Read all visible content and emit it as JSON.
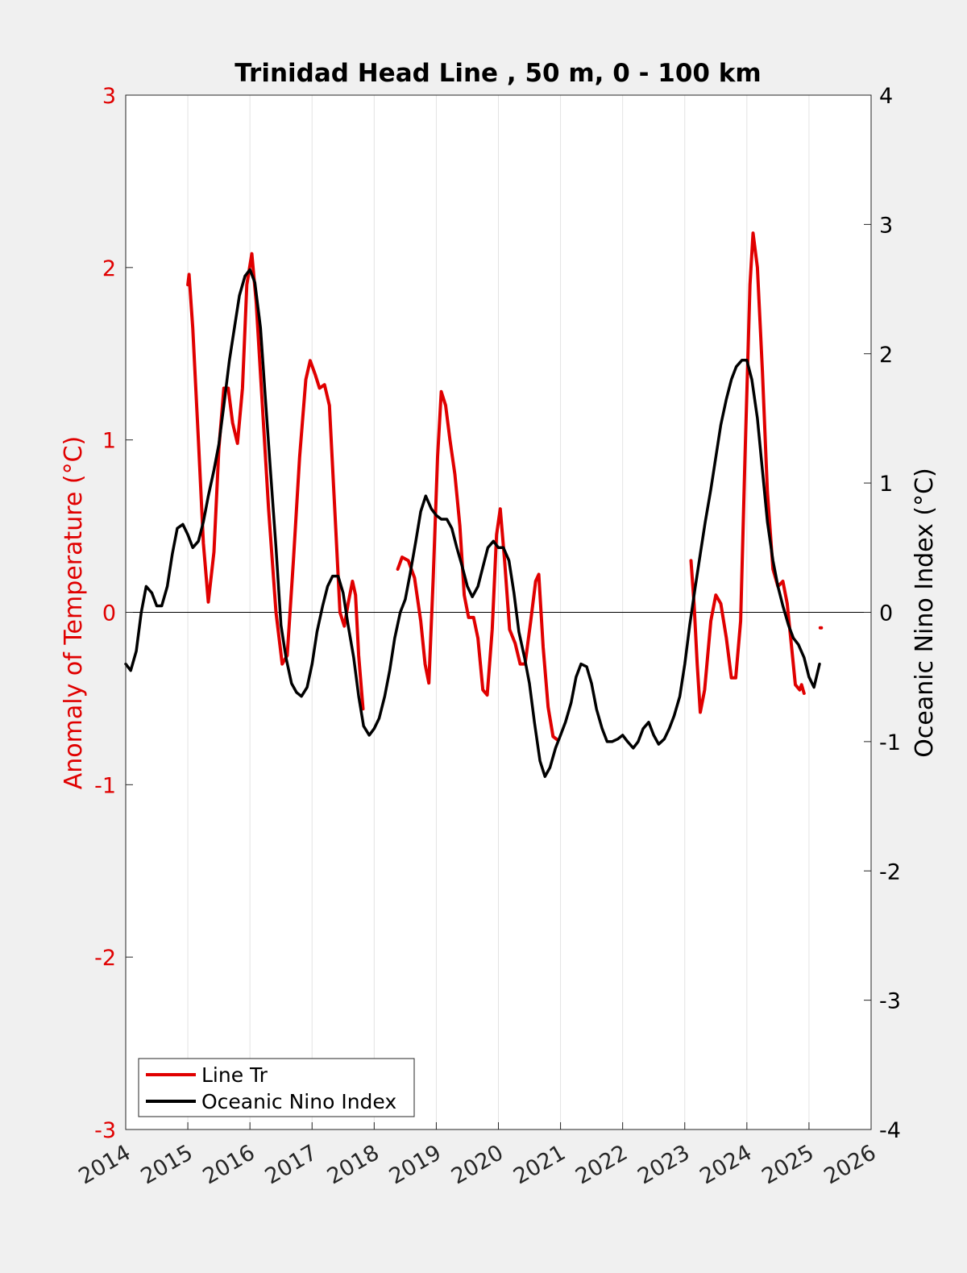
{
  "chart_data": {
    "type": "line",
    "title": "Trinidad Head Line , 50 m, 0 - 100 km",
    "xlabel": "",
    "ylabel_left": "Anomaly of Temperature (°C)",
    "ylabel_right": "Oceanic Nino Index (°C)",
    "xlim": [
      2014,
      2026
    ],
    "ylim_left": [
      -3,
      3
    ],
    "ylim_right": [
      -4,
      4
    ],
    "x_ticks": [
      "2014",
      "2015",
      "2016",
      "2017",
      "2018",
      "2019",
      "2020",
      "2021",
      "2022",
      "2023",
      "2024",
      "2025",
      "2026"
    ],
    "y_left_ticks": [
      "-3",
      "-2",
      "-1",
      "0",
      "1",
      "2",
      "3"
    ],
    "y_right_ticks": [
      "-4",
      "-3",
      "-2",
      "-1",
      "0",
      "1",
      "2",
      "3",
      "4"
    ],
    "grid": "vertical",
    "zero_line": true,
    "legend_position": "bottom-left",
    "colors": {
      "left_axis": "#e00000",
      "right_axis": "#000000",
      "plot_bg": "#ffffff",
      "figure_bg": "#f0f0f0",
      "grid": "#e3e3e3"
    },
    "series": [
      {
        "name": "Line Tr",
        "axis": "left",
        "color": "#e00000",
        "segments": [
          [
            [
              2015.0,
              1.9
            ],
            [
              2015.02,
              1.96
            ],
            [
              2015.08,
              1.65
            ],
            [
              2015.17,
              1.0
            ],
            [
              2015.25,
              0.4
            ],
            [
              2015.33,
              0.06
            ],
            [
              2015.42,
              0.35
            ],
            [
              2015.5,
              0.95
            ],
            [
              2015.58,
              1.3
            ],
            [
              2015.65,
              1.3
            ],
            [
              2015.72,
              1.1
            ],
            [
              2015.8,
              0.98
            ],
            [
              2015.88,
              1.3
            ],
            [
              2015.95,
              1.9
            ],
            [
              2016.03,
              2.08
            ],
            [
              2016.1,
              1.8
            ],
            [
              2016.2,
              1.2
            ],
            [
              2016.3,
              0.6
            ],
            [
              2016.42,
              0.0
            ],
            [
              2016.52,
              -0.3
            ],
            [
              2016.6,
              -0.25
            ],
            [
              2016.7,
              0.3
            ],
            [
              2016.8,
              0.9
            ],
            [
              2016.9,
              1.35
            ],
            [
              2016.97,
              1.46
            ],
            [
              2017.05,
              1.38
            ],
            [
              2017.12,
              1.3
            ],
            [
              2017.2,
              1.32
            ],
            [
              2017.28,
              1.2
            ],
            [
              2017.38,
              0.5
            ],
            [
              2017.45,
              0.0
            ],
            [
              2017.52,
              -0.08
            ],
            [
              2017.58,
              0.05
            ],
            [
              2017.65,
              0.18
            ],
            [
              2017.7,
              0.1
            ],
            [
              2017.75,
              -0.25
            ],
            [
              2017.82,
              -0.56
            ]
          ],
          [
            [
              2018.38,
              0.25
            ],
            [
              2018.45,
              0.32
            ],
            [
              2018.55,
              0.3
            ],
            [
              2018.65,
              0.2
            ],
            [
              2018.75,
              -0.05
            ],
            [
              2018.82,
              -0.3
            ],
            [
              2018.88,
              -0.41
            ],
            [
              2018.95,
              0.2
            ],
            [
              2019.02,
              0.9
            ],
            [
              2019.08,
              1.28
            ],
            [
              2019.15,
              1.2
            ],
            [
              2019.22,
              1.0
            ],
            [
              2019.3,
              0.8
            ],
            [
              2019.38,
              0.5
            ],
            [
              2019.45,
              0.1
            ],
            [
              2019.52,
              -0.03
            ],
            [
              2019.6,
              -0.03
            ],
            [
              2019.67,
              -0.15
            ],
            [
              2019.75,
              -0.45
            ],
            [
              2019.82,
              -0.48
            ],
            [
              2019.9,
              -0.1
            ],
            [
              2019.97,
              0.45
            ],
            [
              2020.03,
              0.6
            ],
            [
              2020.1,
              0.3
            ],
            [
              2020.18,
              -0.1
            ],
            [
              2020.27,
              -0.18
            ],
            [
              2020.35,
              -0.3
            ],
            [
              2020.43,
              -0.3
            ],
            [
              2020.52,
              -0.05
            ],
            [
              2020.6,
              0.18
            ],
            [
              2020.65,
              0.22
            ],
            [
              2020.72,
              -0.2
            ],
            [
              2020.8,
              -0.55
            ],
            [
              2020.88,
              -0.72
            ],
            [
              2020.95,
              -0.74
            ]
          ],
          [
            [
              2023.1,
              0.3
            ],
            [
              2023.15,
              0.05
            ],
            [
              2023.2,
              -0.3
            ],
            [
              2023.25,
              -0.58
            ],
            [
              2023.32,
              -0.45
            ],
            [
              2023.42,
              -0.05
            ],
            [
              2023.5,
              0.1
            ],
            [
              2023.58,
              0.05
            ],
            [
              2023.67,
              -0.15
            ],
            [
              2023.75,
              -0.38
            ],
            [
              2023.82,
              -0.38
            ],
            [
              2023.9,
              -0.05
            ],
            [
              2023.97,
              0.9
            ],
            [
              2024.05,
              1.9
            ],
            [
              2024.1,
              2.2
            ],
            [
              2024.17,
              2.0
            ],
            [
              2024.25,
              1.4
            ],
            [
              2024.33,
              0.7
            ],
            [
              2024.42,
              0.25
            ],
            [
              2024.5,
              0.15
            ],
            [
              2024.58,
              0.18
            ],
            [
              2024.65,
              0.05
            ],
            [
              2024.72,
              -0.2
            ],
            [
              2024.78,
              -0.42
            ],
            [
              2024.85,
              -0.45
            ],
            [
              2024.88,
              -0.42
            ],
            [
              2024.92,
              -0.47
            ]
          ],
          [
            [
              2025.18,
              -0.09
            ],
            [
              2025.2,
              -0.09
            ]
          ]
        ]
      },
      {
        "name": "Oceanic Nino Index",
        "axis": "right",
        "color": "#000000",
        "segments": [
          [
            [
              2014.0,
              -0.4
            ],
            [
              2014.08,
              -0.45
            ],
            [
              2014.17,
              -0.3
            ],
            [
              2014.25,
              0.0
            ],
            [
              2014.33,
              0.2
            ],
            [
              2014.42,
              0.15
            ],
            [
              2014.5,
              0.05
            ],
            [
              2014.58,
              0.05
            ],
            [
              2014.67,
              0.2
            ],
            [
              2014.75,
              0.45
            ],
            [
              2014.83,
              0.65
            ],
            [
              2014.92,
              0.68
            ],
            [
              2015.0,
              0.6
            ],
            [
              2015.08,
              0.5
            ],
            [
              2015.17,
              0.55
            ],
            [
              2015.25,
              0.7
            ],
            [
              2015.33,
              0.9
            ],
            [
              2015.42,
              1.1
            ],
            [
              2015.5,
              1.3
            ],
            [
              2015.58,
              1.6
            ],
            [
              2015.67,
              1.95
            ],
            [
              2015.75,
              2.2
            ],
            [
              2015.83,
              2.45
            ],
            [
              2015.92,
              2.6
            ],
            [
              2016.0,
              2.65
            ],
            [
              2016.08,
              2.55
            ],
            [
              2016.17,
              2.2
            ],
            [
              2016.25,
              1.65
            ],
            [
              2016.33,
              1.1
            ],
            [
              2016.42,
              0.5
            ],
            [
              2016.5,
              -0.1
            ],
            [
              2016.58,
              -0.35
            ],
            [
              2016.67,
              -0.55
            ],
            [
              2016.75,
              -0.62
            ],
            [
              2016.83,
              -0.65
            ],
            [
              2016.92,
              -0.58
            ],
            [
              2017.0,
              -0.4
            ],
            [
              2017.08,
              -0.15
            ],
            [
              2017.17,
              0.05
            ],
            [
              2017.25,
              0.2
            ],
            [
              2017.33,
              0.28
            ],
            [
              2017.42,
              0.28
            ],
            [
              2017.5,
              0.15
            ],
            [
              2017.58,
              -0.1
            ],
            [
              2017.67,
              -0.35
            ],
            [
              2017.75,
              -0.65
            ],
            [
              2017.83,
              -0.88
            ],
            [
              2017.92,
              -0.95
            ],
            [
              2018.0,
              -0.9
            ],
            [
              2018.08,
              -0.82
            ],
            [
              2018.17,
              -0.65
            ],
            [
              2018.25,
              -0.45
            ],
            [
              2018.33,
              -0.2
            ],
            [
              2018.42,
              0.0
            ],
            [
              2018.5,
              0.1
            ],
            [
              2018.58,
              0.3
            ],
            [
              2018.67,
              0.55
            ],
            [
              2018.75,
              0.78
            ],
            [
              2018.83,
              0.9
            ],
            [
              2018.92,
              0.8
            ],
            [
              2019.0,
              0.75
            ],
            [
              2019.08,
              0.72
            ],
            [
              2019.17,
              0.72
            ],
            [
              2019.25,
              0.65
            ],
            [
              2019.33,
              0.5
            ],
            [
              2019.42,
              0.35
            ],
            [
              2019.5,
              0.2
            ],
            [
              2019.58,
              0.12
            ],
            [
              2019.67,
              0.2
            ],
            [
              2019.75,
              0.35
            ],
            [
              2019.83,
              0.5
            ],
            [
              2019.92,
              0.55
            ],
            [
              2020.0,
              0.5
            ],
            [
              2020.08,
              0.5
            ],
            [
              2020.17,
              0.4
            ],
            [
              2020.25,
              0.15
            ],
            [
              2020.33,
              -0.15
            ],
            [
              2020.42,
              -0.35
            ],
            [
              2020.5,
              -0.55
            ],
            [
              2020.58,
              -0.85
            ],
            [
              2020.67,
              -1.15
            ],
            [
              2020.75,
              -1.27
            ],
            [
              2020.83,
              -1.2
            ],
            [
              2020.92,
              -1.05
            ],
            [
              2021.0,
              -0.95
            ],
            [
              2021.08,
              -0.85
            ],
            [
              2021.17,
              -0.7
            ],
            [
              2021.25,
              -0.5
            ],
            [
              2021.33,
              -0.4
            ],
            [
              2021.42,
              -0.42
            ],
            [
              2021.5,
              -0.55
            ],
            [
              2021.58,
              -0.75
            ],
            [
              2021.67,
              -0.9
            ],
            [
              2021.75,
              -1.0
            ],
            [
              2021.83,
              -1.0
            ],
            [
              2021.92,
              -0.98
            ],
            [
              2022.0,
              -0.95
            ],
            [
              2022.08,
              -1.0
            ],
            [
              2022.17,
              -1.05
            ],
            [
              2022.25,
              -1.0
            ],
            [
              2022.33,
              -0.9
            ],
            [
              2022.42,
              -0.85
            ],
            [
              2022.5,
              -0.95
            ],
            [
              2022.58,
              -1.02
            ],
            [
              2022.67,
              -0.98
            ],
            [
              2022.75,
              -0.9
            ],
            [
              2022.83,
              -0.8
            ],
            [
              2022.92,
              -0.65
            ],
            [
              2023.0,
              -0.4
            ],
            [
              2023.08,
              -0.1
            ],
            [
              2023.17,
              0.2
            ],
            [
              2023.25,
              0.45
            ],
            [
              2023.33,
              0.7
            ],
            [
              2023.42,
              0.95
            ],
            [
              2023.5,
              1.2
            ],
            [
              2023.58,
              1.45
            ],
            [
              2023.67,
              1.65
            ],
            [
              2023.75,
              1.8
            ],
            [
              2023.83,
              1.9
            ],
            [
              2023.92,
              1.95
            ],
            [
              2024.0,
              1.95
            ],
            [
              2024.08,
              1.8
            ],
            [
              2024.17,
              1.5
            ],
            [
              2024.25,
              1.1
            ],
            [
              2024.33,
              0.7
            ],
            [
              2024.42,
              0.4
            ],
            [
              2024.5,
              0.2
            ],
            [
              2024.58,
              0.05
            ],
            [
              2024.67,
              -0.1
            ],
            [
              2024.75,
              -0.2
            ],
            [
              2024.83,
              -0.25
            ],
            [
              2024.92,
              -0.35
            ],
            [
              2025.0,
              -0.5
            ],
            [
              2025.08,
              -0.58
            ],
            [
              2025.17,
              -0.4
            ]
          ]
        ]
      }
    ]
  }
}
